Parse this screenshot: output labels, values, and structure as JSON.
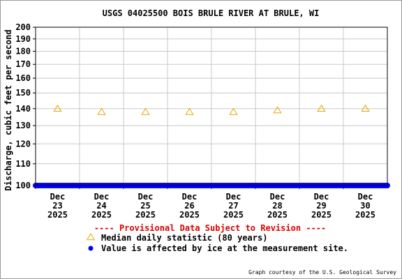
{
  "chart_data": {
    "type": "scatter",
    "title": "USGS 04025500 BOIS BRULE RIVER AT BRULE, WI",
    "ylabel": "Discharge, cubic feet per second",
    "xlabel": "",
    "yscale": "log",
    "ylim": [
      100,
      200
    ],
    "yticks": [
      100,
      110,
      120,
      130,
      140,
      150,
      160,
      170,
      180,
      190,
      200
    ],
    "ytick_labels": [
      "100",
      "110",
      "120",
      "130",
      "140",
      "150",
      "160",
      "170",
      "180",
      "190",
      "200"
    ],
    "xlim": [
      "2025-12-23T00:00",
      "2025-12-31T00:00"
    ],
    "xticks": [
      {
        "date": "2025-12-23",
        "month": "Dec",
        "day": "23",
        "year": "2025"
      },
      {
        "date": "2025-12-24",
        "month": "Dec",
        "day": "24",
        "year": "2025"
      },
      {
        "date": "2025-12-25",
        "month": "Dec",
        "day": "25",
        "year": "2025"
      },
      {
        "date": "2025-12-26",
        "month": "Dec",
        "day": "26",
        "year": "2025"
      },
      {
        "date": "2025-12-27",
        "month": "Dec",
        "day": "27",
        "year": "2025"
      },
      {
        "date": "2025-12-28",
        "month": "Dec",
        "day": "28",
        "year": "2025"
      },
      {
        "date": "2025-12-29",
        "month": "Dec",
        "day": "29",
        "year": "2025"
      },
      {
        "date": "2025-12-30",
        "month": "Dec",
        "day": "30",
        "year": "2025"
      }
    ],
    "grid": true,
    "series": [
      {
        "name": "Median daily statistic (80 years)",
        "marker": "triangle-open",
        "color": "#e8a800",
        "points": [
          {
            "x": "2025-12-23T12:00",
            "y": 140
          },
          {
            "x": "2025-12-24T12:00",
            "y": 138
          },
          {
            "x": "2025-12-25T12:00",
            "y": 138
          },
          {
            "x": "2025-12-26T12:00",
            "y": 138
          },
          {
            "x": "2025-12-27T12:00",
            "y": 138
          },
          {
            "x": "2025-12-28T12:00",
            "y": 139
          },
          {
            "x": "2025-12-29T12:00",
            "y": 140
          },
          {
            "x": "2025-12-30T12:00",
            "y": 140
          }
        ]
      },
      {
        "name": "Value is affected by ice at the measurement site.",
        "marker": "dot",
        "color": "#0000ff",
        "y": 100,
        "x_start": "2025-12-23T00:00",
        "x_end": "2025-12-31T00:00",
        "interval_minutes": 60
      }
    ],
    "provisional_note": "---- Provisional Data Subject to Revision ----",
    "provisional_color": "#dd0000",
    "credit": "Graph courtesy of the U.S. Geological Survey"
  }
}
